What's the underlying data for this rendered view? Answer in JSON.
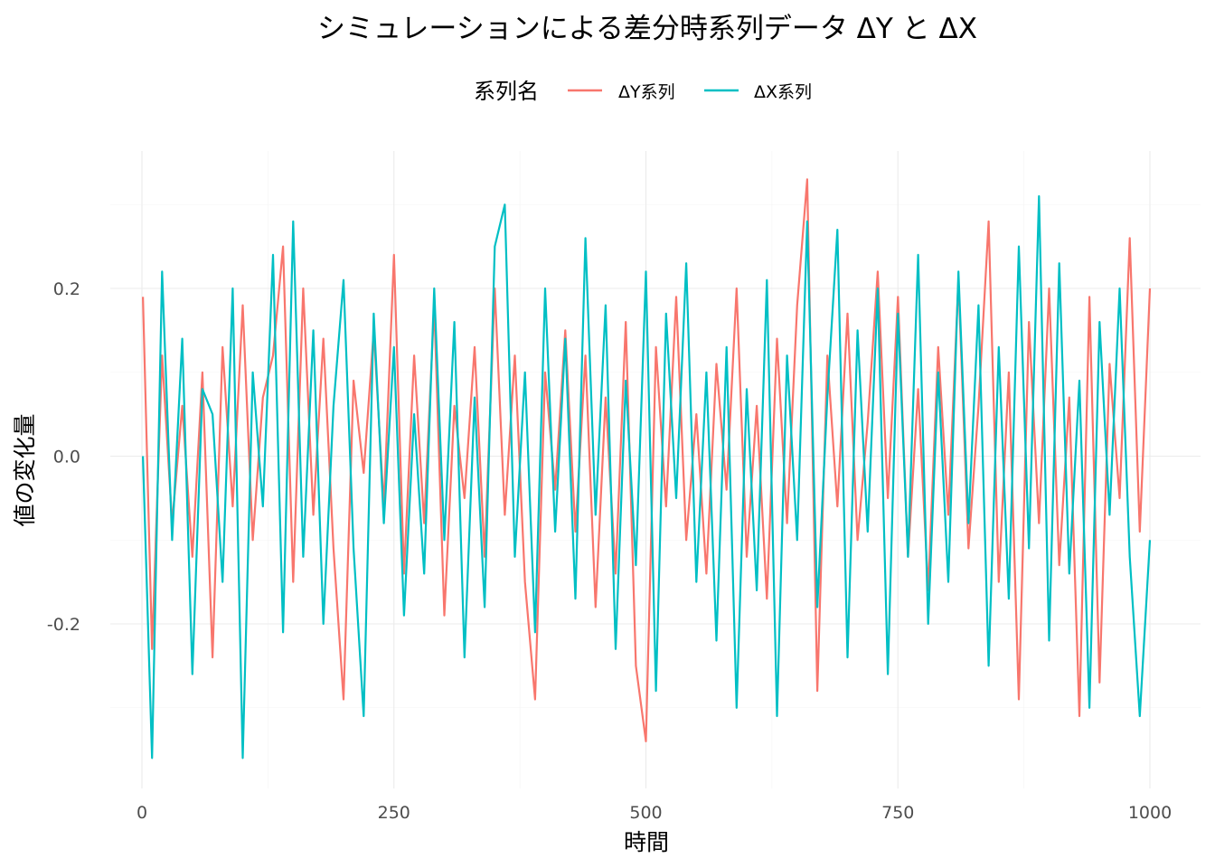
{
  "chart_data": {
    "type": "line",
    "title": "シミュレーションによる差分時系列データ ΔY と ΔX",
    "xlabel": "時間",
    "ylabel": "値の変化量",
    "legend": {
      "title": "系列名",
      "position": "top"
    },
    "xlim": [
      0,
      1000
    ],
    "ylim": [
      -0.36,
      0.33
    ],
    "x_ticks": [
      0,
      250,
      500,
      750,
      1000
    ],
    "x_tick_labels": [
      "0",
      "250",
      "500",
      "750",
      "1000"
    ],
    "y_ticks": [
      -0.2,
      0.0,
      0.2
    ],
    "y_tick_labels": [
      "-0.2",
      "0.0",
      "0.2"
    ],
    "grid": true,
    "series": [
      {
        "name": "ΔY系列",
        "color": "#F8766D",
        "x": [
          1,
          10,
          20,
          30,
          40,
          50,
          60,
          70,
          80,
          90,
          100,
          110,
          120,
          130,
          140,
          150,
          160,
          170,
          180,
          190,
          200,
          210,
          220,
          230,
          240,
          250,
          260,
          270,
          280,
          290,
          300,
          310,
          320,
          330,
          340,
          350,
          360,
          370,
          380,
          390,
          400,
          410,
          420,
          430,
          440,
          450,
          460,
          470,
          480,
          490,
          500,
          510,
          520,
          530,
          540,
          550,
          560,
          570,
          580,
          590,
          600,
          610,
          620,
          630,
          640,
          650,
          660,
          670,
          680,
          690,
          700,
          710,
          720,
          730,
          740,
          750,
          760,
          770,
          780,
          790,
          800,
          810,
          820,
          830,
          840,
          850,
          860,
          870,
          880,
          890,
          900,
          910,
          920,
          930,
          940,
          950,
          960,
          970,
          980,
          990,
          1000
        ],
        "y": [
          0.19,
          -0.23,
          0.12,
          -0.08,
          0.06,
          -0.12,
          0.1,
          -0.24,
          0.13,
          -0.06,
          0.18,
          -0.1,
          0.07,
          0.12,
          0.25,
          -0.15,
          0.2,
          -0.07,
          0.14,
          -0.11,
          -0.29,
          0.09,
          -0.02,
          0.15,
          -0.06,
          0.24,
          -0.14,
          0.12,
          -0.08,
          0.18,
          -0.19,
          0.06,
          -0.05,
          0.13,
          -0.12,
          0.2,
          -0.07,
          0.12,
          -0.15,
          -0.29,
          0.1,
          -0.04,
          0.15,
          -0.09,
          0.12,
          -0.18,
          0.07,
          -0.14,
          0.16,
          -0.25,
          -0.34,
          0.13,
          -0.06,
          0.19,
          -0.1,
          0.05,
          -0.14,
          0.11,
          -0.04,
          0.2,
          -0.12,
          0.06,
          -0.17,
          0.14,
          -0.08,
          0.18,
          0.33,
          -0.28,
          0.12,
          -0.06,
          0.17,
          -0.1,
          0.04,
          0.22,
          -0.05,
          0.19,
          -0.12,
          0.08,
          -0.16,
          0.13,
          -0.07,
          0.21,
          -0.11,
          0.06,
          0.28,
          -0.15,
          0.1,
          -0.29,
          0.16,
          -0.08,
          0.2,
          -0.13,
          0.07,
          -0.31,
          0.19,
          -0.27,
          0.11,
          -0.05,
          0.26,
          -0.09,
          0.2
        ]
      },
      {
        "name": "ΔX系列",
        "color": "#00BFC4",
        "x": [
          1,
          10,
          20,
          30,
          40,
          50,
          60,
          70,
          80,
          90,
          100,
          110,
          120,
          130,
          140,
          150,
          160,
          170,
          180,
          190,
          200,
          210,
          220,
          230,
          240,
          250,
          260,
          270,
          280,
          290,
          300,
          310,
          320,
          330,
          340,
          350,
          360,
          370,
          380,
          390,
          400,
          410,
          420,
          430,
          440,
          450,
          460,
          470,
          480,
          490,
          500,
          510,
          520,
          530,
          540,
          550,
          560,
          570,
          580,
          590,
          600,
          610,
          620,
          630,
          640,
          650,
          660,
          670,
          680,
          690,
          700,
          710,
          720,
          730,
          740,
          750,
          760,
          770,
          780,
          790,
          800,
          810,
          820,
          830,
          840,
          850,
          860,
          870,
          880,
          890,
          900,
          910,
          920,
          930,
          940,
          950,
          960,
          970,
          980,
          990,
          1000
        ],
        "y": [
          0.0,
          -0.36,
          0.22,
          -0.1,
          0.14,
          -0.26,
          0.08,
          0.05,
          -0.15,
          0.2,
          -0.36,
          0.1,
          -0.06,
          0.24,
          -0.21,
          0.28,
          -0.12,
          0.15,
          -0.2,
          0.06,
          0.21,
          -0.11,
          -0.31,
          0.17,
          -0.08,
          0.13,
          -0.19,
          0.05,
          -0.14,
          0.2,
          -0.1,
          0.16,
          -0.24,
          0.07,
          -0.18,
          0.25,
          0.3,
          -0.12,
          0.1,
          -0.21,
          0.2,
          -0.09,
          0.14,
          -0.17,
          0.26,
          -0.07,
          0.18,
          -0.23,
          0.09,
          -0.13,
          0.22,
          -0.28,
          0.17,
          -0.05,
          0.23,
          -0.15,
          0.1,
          -0.22,
          0.13,
          -0.3,
          0.08,
          -0.16,
          0.21,
          -0.31,
          0.12,
          -0.1,
          0.28,
          -0.18,
          0.07,
          0.27,
          -0.24,
          0.15,
          -0.09,
          0.2,
          -0.26,
          0.17,
          -0.12,
          0.24,
          -0.2,
          0.1,
          -0.15,
          0.22,
          -0.08,
          0.18,
          -0.25,
          0.13,
          -0.17,
          0.25,
          -0.11,
          0.31,
          -0.22,
          0.23,
          -0.14,
          0.09,
          -0.3,
          0.16,
          -0.07,
          0.2,
          -0.12,
          -0.31,
          -0.1
        ]
      }
    ]
  }
}
